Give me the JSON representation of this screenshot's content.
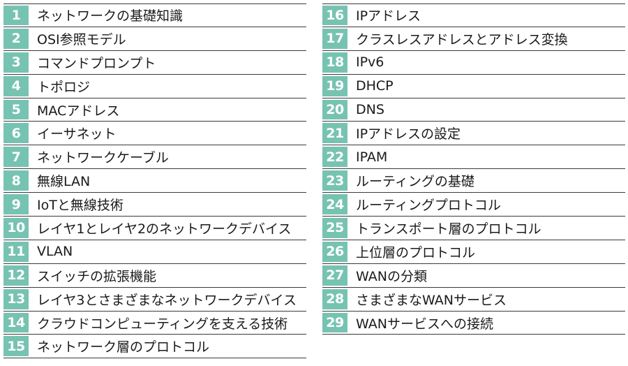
{
  "colors": {
    "number_badge": "#77c3b2",
    "rule_line": "#3a3a3a",
    "text": "#1a1a1a"
  },
  "left_column": [
    {
      "number": "1",
      "title": "ネットワークの基礎知識"
    },
    {
      "number": "2",
      "title": "OSI参照モデル"
    },
    {
      "number": "3",
      "title": "コマンドプロンプト"
    },
    {
      "number": "4",
      "title": "トポロジ"
    },
    {
      "number": "5",
      "title": "MACアドレス"
    },
    {
      "number": "6",
      "title": "イーサネット"
    },
    {
      "number": "7",
      "title": "ネットワークケーブル"
    },
    {
      "number": "8",
      "title": "無線LAN"
    },
    {
      "number": "9",
      "title": "IoTと無線技術"
    },
    {
      "number": "10",
      "title": "レイヤ1とレイヤ2のネットワークデバイス"
    },
    {
      "number": "11",
      "title": "VLAN"
    },
    {
      "number": "12",
      "title": "スイッチの拡張機能"
    },
    {
      "number": "13",
      "title": "レイヤ3とさまざまなネットワークデバイス"
    },
    {
      "number": "14",
      "title": "クラウドコンピューティングを支える技術"
    },
    {
      "number": "15",
      "title": "ネットワーク層のプロトコル"
    }
  ],
  "right_column": [
    {
      "number": "16",
      "title": "IPアドレス"
    },
    {
      "number": "17",
      "title": "クラスレスアドレスとアドレス変換"
    },
    {
      "number": "18",
      "title": "IPv6"
    },
    {
      "number": "19",
      "title": "DHCP"
    },
    {
      "number": "20",
      "title": "DNS"
    },
    {
      "number": "21",
      "title": "IPアドレスの設定"
    },
    {
      "number": "22",
      "title": "IPAM"
    },
    {
      "number": "23",
      "title": "ルーティングの基礎"
    },
    {
      "number": "24",
      "title": "ルーティングプロトコル"
    },
    {
      "number": "25",
      "title": "トランスポート層のプロトコル"
    },
    {
      "number": "26",
      "title": "上位層のプロトコル"
    },
    {
      "number": "27",
      "title": "WANの分類"
    },
    {
      "number": "28",
      "title": "さまざまなWANサービス"
    },
    {
      "number": "29",
      "title": "WANサービスへの接続"
    }
  ]
}
